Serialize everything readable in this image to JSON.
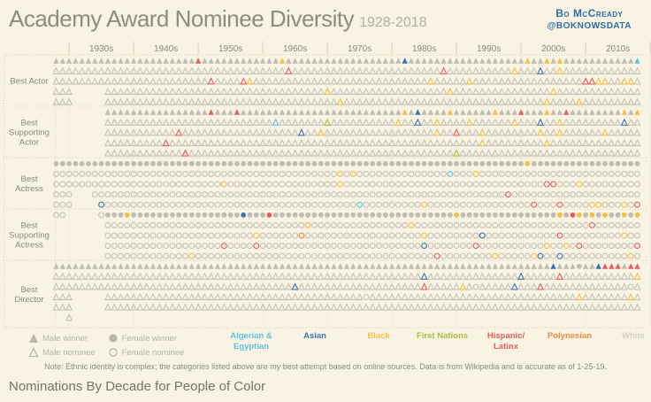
{
  "header": {
    "title": "Academy Award Nominee Diversity",
    "subtitle": "1928-2018",
    "byline_name": "Bo McCready",
    "byline_handle": "@BOKNOWSDATA"
  },
  "note": "Note: Ethnic identity is complex; the categories listed above are my best attempt based on online sources. Data is from Wikipedia and is accurate as of 1-25-19.",
  "footer": {
    "title": "Nominations By Decade for People of Color"
  },
  "colors": {
    "background": "#f9f3e4",
    "grid": "#d8d0bc",
    "label_gray": "#8b887e",
    "winner_gray": "#bfbcb3",
    "byline_blue": "#2e6da4",
    "ethnicities": {
      "a": "#5ec1e6",
      "s": "#3d74ae",
      "b": "#f2c04a",
      "f": "#a6bf3f",
      "h": "#e4605e",
      "p": "#f08b3e",
      "w": "#c6c3ba"
    }
  },
  "legend": {
    "shapes": [
      {
        "label": "Male winner",
        "shape": "triangle",
        "filled": true
      },
      {
        "label": "Male nominee",
        "shape": "triangle",
        "filled": false
      },
      {
        "label": "Female winner",
        "shape": "circle",
        "filled": true
      },
      {
        "label": "Female nominee",
        "shape": "circle",
        "filled": false
      }
    ],
    "ethnicities": [
      {
        "label": "Algerian & Egyptian",
        "code": "a"
      },
      {
        "label": "Asian",
        "code": "s"
      },
      {
        "label": "Black",
        "code": "b"
      },
      {
        "label": "First Nations",
        "code": "f"
      },
      {
        "label": "Hispanic/ Latinx",
        "code": "h"
      },
      {
        "label": "Polynesian",
        "code": "p"
      },
      {
        "label": "White",
        "code": "w"
      }
    ]
  },
  "chart_data": {
    "type": "pictogram-grid",
    "title": "Academy Award Nominee Diversity 1928-2018",
    "x_range": [
      1928,
      2018
    ],
    "decades": [
      "1930s",
      "1940s",
      "1950s",
      "1960s",
      "1970s",
      "1980s",
      "1990s",
      "2000s",
      "2010s"
    ],
    "glyph_semantics": "triangle=male, circle=female; filled=winner, outline=nominee; color=ethnicity code (a=Algerian&Egyptian, s=Asian, b=Black, f=First Nations, h=Hispanic/Latinx, p=Polynesian, w=White)",
    "categories": [
      {
        "label_lines": [
          "Best Actor"
        ],
        "shape": "triangle",
        "lines": [
          {
            "winner": true,
            "ranges": [
              [
                1928,
                2018
              ]
            ],
            "colors": {
              "1950": "h",
              "1963": "b",
              "1982": "s",
              "2001": "b",
              "2004": "b",
              "2006": "b",
              "2018": "a"
            }
          },
          {
            "winner": false,
            "ranges": [
              [
                1928,
                2018
              ]
            ],
            "colors": {
              "1964": "h",
              "1988": "h",
              "1999": "b",
              "2003": "s",
              "2006": "b"
            }
          },
          {
            "winner": false,
            "ranges": [
              [
                1928,
                2018
              ]
            ],
            "colors": {
              "1952": "h",
              "1957": "h",
              "1958": "b",
              "1986": "b",
              "1992": "b",
              "2010": "h",
              "2011": "h",
              "2012": "b",
              "2013": "b",
              "2016": "b",
              "2017": "b"
            }
          },
          {
            "winner": false,
            "ranges": [
              [
                1928,
                1930
              ],
              [
                1936,
                2018
              ]
            ],
            "colors": {
              "1970": "b",
              "1989": "b",
              "2005": "b"
            }
          },
          {
            "winner": false,
            "ranges": [
              [
                1928,
                1930
              ],
              [
                1936,
                2018
              ]
            ],
            "colors": {
              "1972": "b",
              "2004": "b",
              "2009": "b"
            }
          }
        ]
      },
      {
        "label_lines": [
          "Best",
          "Supporting",
          "Actor"
        ],
        "shape": "triangle",
        "lines": [
          {
            "winner": true,
            "ranges": [
              [
                1936,
                2018
              ]
            ],
            "colors": {
              "1952": "h",
              "1956": "h",
              "1982": "b",
              "1984": "s",
              "1989": "b",
              "1996": "b",
              "2000": "h",
              "2004": "b",
              "2007": "h",
              "2016": "b",
              "2018": "b"
            }
          },
          {
            "winner": false,
            "ranges": [
              [
                1936,
                2018
              ]
            ],
            "colors": {
              "1962": "a",
              "1970": "f",
              "1981": "b",
              "1984": "s",
              "1987": "b",
              "1992": "b",
              "1999": "b",
              "2003": "s",
              "2006": "b",
              "2016": "s"
            }
          },
          {
            "winner": false,
            "ranges": [
              [
                1936,
                2018
              ]
            ],
            "colors": {
              "1947": "h",
              "1966": "s",
              "1969": "b",
              "1987": "b",
              "1990": "h",
              "1994": "b",
              "2003": "b",
              "2006": "b",
              "2013": "b"
            }
          },
          {
            "winner": false,
            "ranges": [
              [
                1936,
                2018
              ]
            ],
            "colors": {
              "1945": "h",
              "1994": "b",
              "2004": "b"
            }
          },
          {
            "winner": false,
            "ranges": [
              [
                1936,
                2018
              ]
            ],
            "colors": {
              "1948": "h",
              "1990": "f"
            }
          }
        ]
      },
      {
        "label_lines": [
          "Best",
          "Actress"
        ],
        "shape": "circle",
        "lines": [
          {
            "winner": true,
            "ranges": [
              [
                1928,
                2018
              ]
            ],
            "colors": {
              "2001": "b"
            }
          },
          {
            "winner": false,
            "ranges": [
              [
                1928,
                2018
              ]
            ],
            "colors": {
              "1972": "b",
              "1974": "b",
              "1989": "a",
              "1993": "b"
            }
          },
          {
            "winner": false,
            "ranges": [
              [
                1928,
                2018
              ]
            ],
            "colors": {
              "1954": "b",
              "1972": "b",
              "2004": "h",
              "2005": "h",
              "2009": "b"
            }
          },
          {
            "winner": false,
            "ranges": [
              [
                1928,
                1930
              ],
              [
                1934,
                2018
              ]
            ],
            "colors": {
              "1998": "h"
            }
          },
          {
            "winner": false,
            "ranges": [
              [
                1928,
                1930
              ],
              [
                1935,
                2018
              ]
            ],
            "colors": {
              "1935": "s",
              "1975": "a",
              "1985": "b",
              "2002": "h",
              "2006": "h",
              "2011": "b",
              "2012": "b",
              "2016": "b",
              "2018": "h"
            }
          },
          {
            "winner": false,
            "ranges": [
              [
                1928,
                1929
              ],
              [
                1935,
                1935
              ]
            ],
            "colors": {}
          }
        ]
      },
      {
        "label_lines": [
          "Best",
          "Supporting",
          "Actress"
        ],
        "shape": "circle",
        "lines": [
          {
            "winner": true,
            "ranges": [
              [
                1936,
                2018
              ]
            ],
            "colors": {
              "1939": "b",
              "1957": "s",
              "1961": "h",
              "1990": "b",
              "2006": "b",
              "2008": "h",
              "2009": "b",
              "2011": "b",
              "2013": "b",
              "2016": "b",
              "2018": "b"
            }
          },
          {
            "winner": false,
            "ranges": [
              [
                1936,
                2018
              ]
            ],
            "colors": {
              "1967": "b",
              "1983": "b",
              "2011": "h"
            }
          },
          {
            "winner": false,
            "ranges": [
              [
                1936,
                2018
              ]
            ],
            "colors": {
              "1959": "b",
              "1966": "p",
              "1985": "b",
              "1994": "s",
              "2006": "h",
              "2016": "b"
            }
          },
          {
            "winner": false,
            "ranges": [
              [
                1936,
                2018
              ]
            ],
            "colors": {
              "1954": "h",
              "1959": "h",
              "1985": "s",
              "1993": "h",
              "2004": "b",
              "2007": "b",
              "2009": "h",
              "2018": "h"
            }
          },
          {
            "winner": false,
            "ranges": [
              [
                1936,
                2018
              ]
            ],
            "colors": {
              "1949": "b",
              "1987": "h",
              "1996": "b",
              "2002": "b",
              "2003": "s",
              "2006": "s",
              "2017": "b"
            }
          }
        ]
      },
      {
        "label_lines": [
          "Best",
          "Director"
        ],
        "shape": "triangle",
        "lines": [
          {
            "winner": true,
            "ranges": [
              [
                1928,
                2018
              ]
            ],
            "colors": {
              "2005": "s",
              "2012": "s",
              "2013": "h",
              "2014": "h",
              "2015": "h",
              "2017": "h",
              "2018": "h"
            },
            "circles": [
              2009
            ]
          },
          {
            "winner": false,
            "ranges": [
              [
                1928,
                2018
              ]
            ],
            "colors": {
              "1985": "s",
              "2000": "s",
              "2006": "h",
              "2018": "b"
            }
          },
          {
            "winner": false,
            "ranges": [
              [
                1928,
                2018
              ]
            ],
            "colors": {
              "1965": "s",
              "1985": "h",
              "1991": "b",
              "1999": "s",
              "2003": "h"
            },
            "circles": [
              1993,
              2017
            ]
          },
          {
            "winner": false,
            "ranges": [
              [
                1928,
                1930
              ],
              [
                1936,
                2018
              ]
            ],
            "colors": {
              "2009": "b",
              "2017": "b"
            },
            "circles": [
              1976
            ]
          },
          {
            "winner": false,
            "ranges": [
              [
                1928,
                1930
              ],
              [
                1936,
                2018
              ]
            ],
            "colors": {}
          },
          {
            "winner": false,
            "ranges": [
              [
                1930,
                1930
              ]
            ],
            "colors": {}
          }
        ]
      }
    ]
  }
}
